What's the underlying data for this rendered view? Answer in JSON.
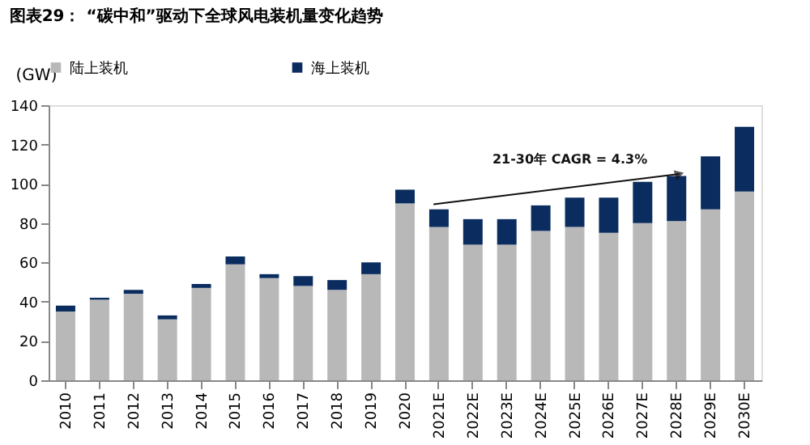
{
  "chart_data": {
    "type": "bar",
    "title": "图表29：  “碳中和”驱动下全球风电装机量变化趋势",
    "ylabel": "(GW)",
    "stacked": true,
    "legend": "top",
    "grid": false,
    "categories": [
      "2010",
      "2011",
      "2012",
      "2013",
      "2014",
      "2015",
      "2016",
      "2017",
      "2018",
      "2019",
      "2020",
      "2021E",
      "2022E",
      "2023E",
      "2024E",
      "2025E",
      "2026E",
      "2027E",
      "2028E",
      "2029E",
      "2030E"
    ],
    "series": [
      {
        "name": "陆上装机",
        "color": "#b8b8b8",
        "values": [
          35,
          41,
          44,
          31,
          47,
          59,
          52,
          48,
          46,
          54,
          90,
          78,
          69,
          69,
          76,
          78,
          75,
          80,
          81,
          87,
          96
        ]
      },
      {
        "name": "海上装机",
        "color": "#0b2c5e",
        "values": [
          3,
          1,
          2,
          2,
          2,
          4,
          2,
          5,
          5,
          6,
          7,
          9,
          13,
          13,
          13,
          15,
          18,
          21,
          23,
          27,
          33
        ]
      }
    ],
    "ylim": [
      0,
      140
    ],
    "yticks": [
      0,
      20,
      40,
      60,
      80,
      100,
      120,
      140
    ],
    "annotations": [
      "21-30年 CAGR = 4.3%"
    ]
  }
}
